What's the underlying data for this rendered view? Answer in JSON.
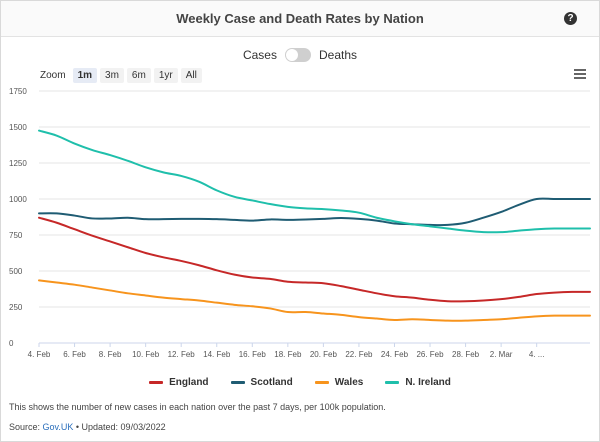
{
  "header": {
    "title": "Weekly Case and Death Rates by Nation",
    "help_icon": "help-icon"
  },
  "toggle": {
    "left_label": "Cases",
    "right_label": "Deaths",
    "state": "Cases"
  },
  "zoom": {
    "label": "Zoom",
    "buttons": [
      "1m",
      "3m",
      "6m",
      "1yr",
      "All"
    ],
    "active": "1m"
  },
  "menu_icon": "hamburger-menu-icon",
  "chart_data": {
    "type": "line",
    "title": "Weekly Case and Death Rates by Nation",
    "xlabel": "",
    "ylabel": "",
    "ylim": [
      0,
      1750
    ],
    "yticks": [
      0,
      250,
      500,
      750,
      1000,
      1250,
      1500,
      1750
    ],
    "x": [
      4,
      5,
      6,
      7,
      8,
      9,
      10,
      11,
      12,
      13,
      14,
      15,
      16,
      17,
      18,
      19,
      20,
      21,
      22,
      23,
      24,
      25,
      26,
      27,
      28,
      29,
      30,
      31,
      32,
      33,
      34,
      35
    ],
    "xlim": [
      4,
      35
    ],
    "xticks": [
      {
        "x": 4,
        "label": "4. Feb"
      },
      {
        "x": 6,
        "label": "6. Feb"
      },
      {
        "x": 8,
        "label": "8. Feb"
      },
      {
        "x": 10,
        "label": "10. Feb"
      },
      {
        "x": 12,
        "label": "12. Feb"
      },
      {
        "x": 14,
        "label": "14. Feb"
      },
      {
        "x": 16,
        "label": "16. Feb"
      },
      {
        "x": 18,
        "label": "18. Feb"
      },
      {
        "x": 20,
        "label": "20. Feb"
      },
      {
        "x": 22,
        "label": "22. Feb"
      },
      {
        "x": 24,
        "label": "24. Feb"
      },
      {
        "x": 26,
        "label": "26. Feb"
      },
      {
        "x": 28,
        "label": "28. Feb"
      },
      {
        "x": 30,
        "label": "2. Mar"
      },
      {
        "x": 32,
        "label": "4. ..."
      }
    ],
    "series": [
      {
        "name": "England",
        "color": "#c62828",
        "values": [
          870,
          835,
          790,
          745,
          705,
          665,
          625,
          595,
          570,
          540,
          505,
          475,
          455,
          445,
          425,
          420,
          415,
          395,
          370,
          345,
          325,
          315,
          300,
          290,
          290,
          295,
          305,
          320,
          340,
          350,
          355,
          355
        ]
      },
      {
        "name": "Scotland",
        "color": "#1f5c73",
        "values": [
          900,
          900,
          885,
          865,
          865,
          870,
          860,
          860,
          862,
          862,
          860,
          855,
          850,
          858,
          855,
          858,
          862,
          868,
          862,
          850,
          830,
          825,
          820,
          820,
          835,
          870,
          910,
          960,
          1000,
          1000,
          1000,
          1000
        ]
      },
      {
        "name": "Wales",
        "color": "#f7941d",
        "values": [
          435,
          420,
          405,
          385,
          365,
          345,
          330,
          315,
          305,
          295,
          280,
          265,
          255,
          240,
          215,
          215,
          205,
          195,
          180,
          170,
          160,
          165,
          160,
          155,
          155,
          160,
          165,
          175,
          185,
          190,
          190,
          190
        ]
      },
      {
        "name": "N. Ireland",
        "color": "#1fbfab",
        "values": [
          1475,
          1440,
          1385,
          1340,
          1305,
          1265,
          1220,
          1185,
          1160,
          1120,
          1060,
          1015,
          990,
          965,
          945,
          935,
          930,
          920,
          905,
          870,
          845,
          825,
          810,
          795,
          780,
          770,
          770,
          780,
          790,
          795,
          795,
          795
        ]
      }
    ]
  },
  "legend": {
    "items": [
      {
        "label": "England",
        "color": "#c62828"
      },
      {
        "label": "Scotland",
        "color": "#1f5c73"
      },
      {
        "label": "Wales",
        "color": "#f7941d"
      },
      {
        "label": "N. Ireland",
        "color": "#1fbfab"
      }
    ]
  },
  "footer": {
    "note": "This shows the number of new cases in each nation over the past 7 days, per 100k population.",
    "source_prefix": "Source: ",
    "source_link": "Gov.UK",
    "updated": " • Updated: 09/03/2022"
  }
}
